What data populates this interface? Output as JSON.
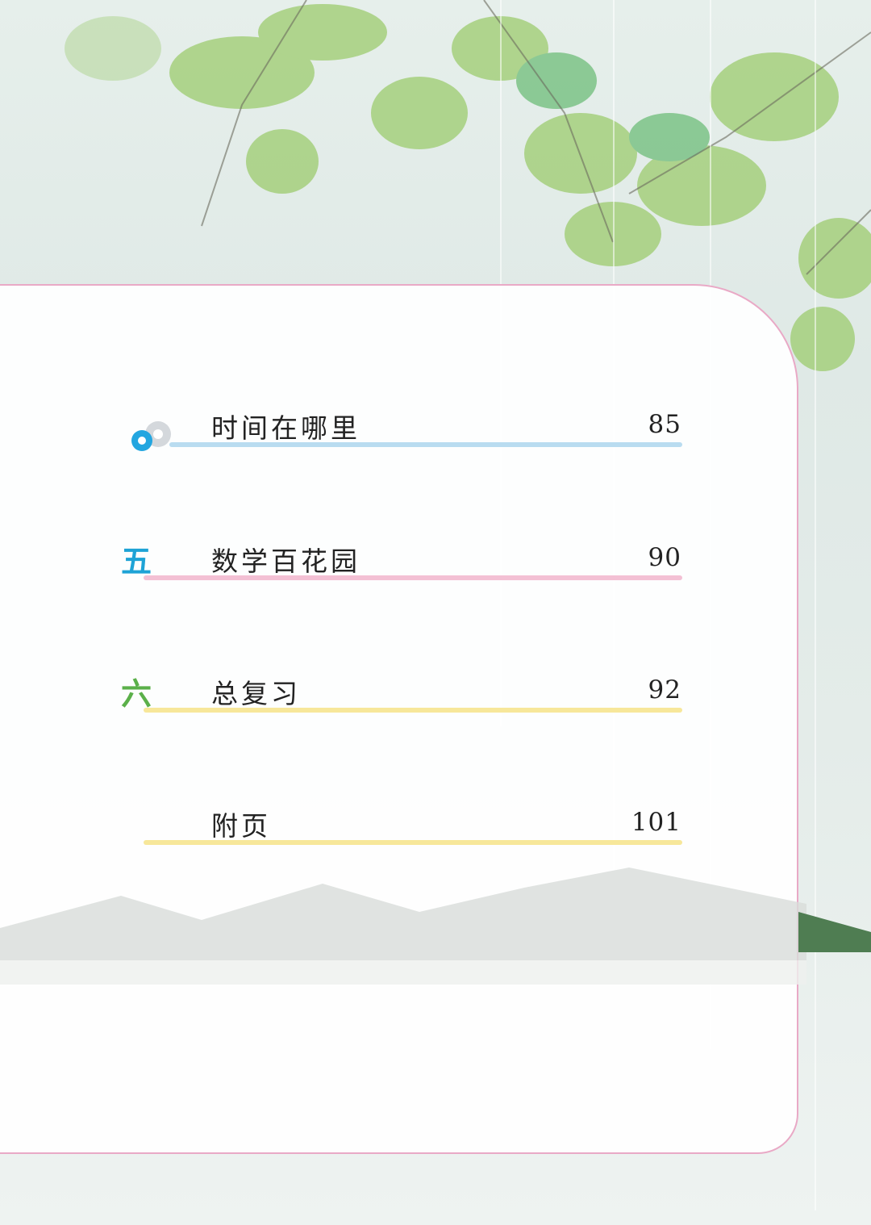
{
  "toc": {
    "entries": [
      {
        "numeral": "",
        "icon": "gear-icon",
        "title": "时间在哪里",
        "page": "85",
        "line_color": "#b9dcf0"
      },
      {
        "numeral": "五",
        "numeral_color": "#1ea3d6",
        "title": "数学百花园",
        "page": "90",
        "line_color": "#f3c0d4"
      },
      {
        "numeral": "六",
        "numeral_color": "#5bb04a",
        "title": "总复习",
        "page": "92",
        "line_color": "#f7e79a"
      },
      {
        "numeral": "",
        "title": "附页",
        "page": "101",
        "line_color": "#f7e79a"
      }
    ]
  },
  "colors": {
    "panel_border": "#e9a9c6",
    "foliage": "#8fc06a",
    "gear_blue": "#23a6e0",
    "gear_gray": "#d4d8dc"
  }
}
